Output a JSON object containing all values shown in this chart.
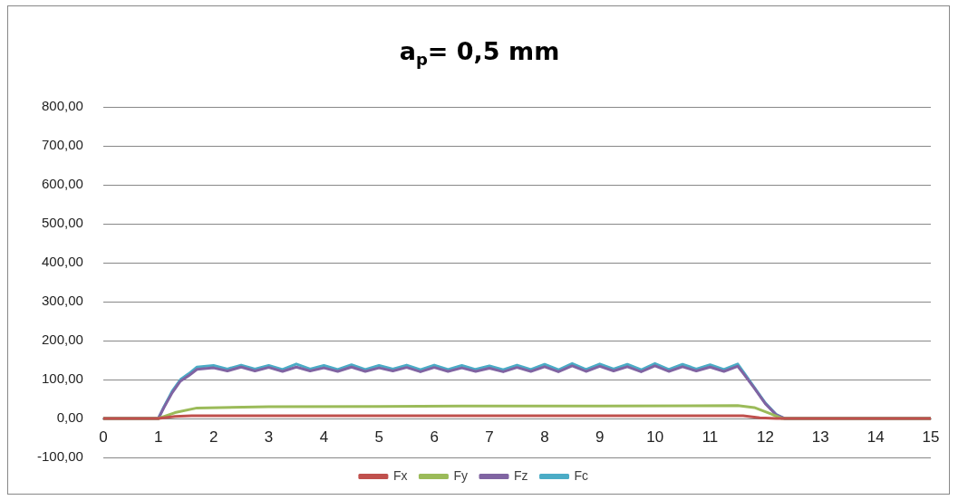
{
  "chart_data": {
    "type": "line",
    "title": "a$_{p}$= 0,5 mm",
    "series": [
      {
        "name": "Fx",
        "color": "#c0504d",
        "x": [
          0,
          1.0,
          1.3,
          1.6,
          3,
          5,
          7,
          9,
          11.6,
          11.9,
          12.2,
          15
        ],
        "values": [
          0,
          0,
          5,
          7,
          7,
          7,
          7,
          7,
          7,
          2,
          0,
          0
        ]
      },
      {
        "name": "Fy",
        "color": "#9bbb59",
        "x": [
          0,
          1.0,
          1.3,
          1.7,
          3,
          5,
          7,
          9,
          11.5,
          11.8,
          12.1,
          12.3,
          15
        ],
        "values": [
          0,
          0,
          15,
          27,
          30,
          31,
          32,
          32,
          33,
          28,
          12,
          0,
          0
        ]
      },
      {
        "name": "Fz",
        "color": "#8064a2",
        "x": [
          0,
          1.0,
          1.1,
          1.25,
          1.4,
          1.55,
          1.7,
          2.0,
          2.25,
          2.5,
          2.75,
          3.0,
          3.25,
          3.5,
          3.75,
          4.0,
          4.25,
          4.5,
          4.75,
          5.0,
          5.25,
          5.5,
          5.75,
          6.0,
          6.25,
          6.5,
          6.75,
          7.0,
          7.25,
          7.5,
          7.75,
          8.0,
          8.25,
          8.5,
          8.75,
          9.0,
          9.25,
          9.5,
          9.75,
          10.0,
          10.25,
          10.5,
          10.75,
          11.0,
          11.25,
          11.5,
          11.6,
          11.8,
          12.0,
          12.2,
          12.35,
          15
        ],
        "values": [
          0,
          0,
          28,
          66,
          96,
          110,
          126,
          130,
          122,
          132,
          122,
          131,
          121,
          132,
          122,
          130,
          121,
          132,
          121,
          130,
          122,
          131,
          120,
          131,
          121,
          130,
          121,
          129,
          120,
          131,
          121,
          133,
          120,
          135,
          121,
          134,
          122,
          133,
          120,
          135,
          121,
          133,
          122,
          132,
          121,
          134,
          116,
          78,
          38,
          9,
          0,
          0
        ]
      },
      {
        "name": "Fc",
        "color": "#4bacc6",
        "x": [
          0,
          1.0,
          1.1,
          1.25,
          1.4,
          1.55,
          1.7,
          2.0,
          2.25,
          2.5,
          2.75,
          3.0,
          3.25,
          3.5,
          3.75,
          4.0,
          4.25,
          4.5,
          4.75,
          5.0,
          5.25,
          5.5,
          5.75,
          6.0,
          6.25,
          6.5,
          6.75,
          7.0,
          7.25,
          7.5,
          7.75,
          8.0,
          8.25,
          8.5,
          8.75,
          9.0,
          9.25,
          9.5,
          9.75,
          10.0,
          10.25,
          10.5,
          10.75,
          11.0,
          11.25,
          11.5,
          11.6,
          11.8,
          12.0,
          12.2,
          12.35,
          15
        ],
        "values": [
          0,
          0,
          30,
          70,
          100,
          115,
          132,
          136,
          127,
          137,
          127,
          136,
          126,
          140,
          127,
          136,
          126,
          138,
          126,
          136,
          127,
          137,
          125,
          137,
          126,
          136,
          126,
          135,
          125,
          137,
          126,
          139,
          125,
          141,
          126,
          140,
          127,
          139,
          125,
          141,
          126,
          139,
          127,
          138,
          126,
          140,
          120,
          80,
          40,
          10,
          0,
          0
        ]
      }
    ],
    "xlim": [
      0,
      15
    ],
    "xticks": [
      0,
      1,
      2,
      3,
      4,
      5,
      6,
      7,
      8,
      9,
      10,
      11,
      12,
      13,
      14,
      15
    ],
    "ylim": [
      -100,
      800
    ],
    "yticks": [
      {
        "value": -100,
        "label": "-100,00"
      },
      {
        "value": 0,
        "label": "0,00"
      },
      {
        "value": 100,
        "label": "100,00"
      },
      {
        "value": 200,
        "label": "200,00"
      },
      {
        "value": 300,
        "label": "300,00"
      },
      {
        "value": 400,
        "label": "400,00"
      },
      {
        "value": 500,
        "label": "500,00"
      },
      {
        "value": 600,
        "label": "600,00"
      },
      {
        "value": 700,
        "label": "700,00"
      },
      {
        "value": 800,
        "label": "800,00"
      }
    ],
    "grid": "y",
    "legend": "bottom",
    "marker": "none",
    "line_style": "solid"
  }
}
